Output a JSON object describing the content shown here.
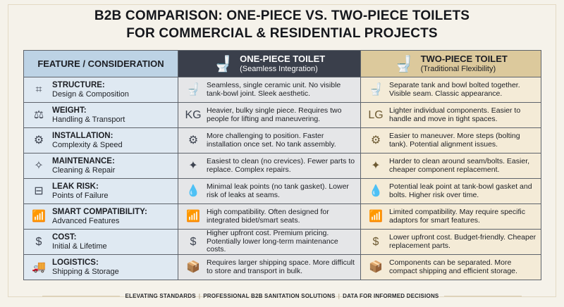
{
  "title": {
    "line1": "B2B COMPARISON: ONE-PIECE VS. TWO-PIECE TOILETS",
    "line2": "FOR COMMERCIAL & RESIDENTIAL PROJECTS"
  },
  "header": {
    "feature": "FEATURE / CONSIDERATION",
    "one_piece": {
      "title": "ONE-PIECE TOILET",
      "subtitle": "(Seamless Integration)",
      "icon": "toilet-icon"
    },
    "two_piece": {
      "title": "TWO-PIECE TOILET",
      "subtitle": "(Traditional Flexibility)",
      "icon": "toilet-icon"
    }
  },
  "rows": [
    {
      "label": "STRUCTURE:",
      "sub": "Design & Composition",
      "icon": "frame-icon",
      "glyph": "⌗",
      "one": "Seamless, single ceramic unit. No visible tank-bowl joint. Sleek aesthetic.",
      "one_icon": "toilet-icon",
      "one_glyph": "🚽",
      "two": "Separate tank and bowl bolted together. Visible seam. Classic appearance.",
      "two_icon": "toilet-icon",
      "two_glyph": "🚽"
    },
    {
      "label": "WEIGHT:",
      "sub": "Handling & Transport",
      "icon": "scale-icon",
      "glyph": "⚖",
      "one": "Heavier, bulky single piece. Requires two people for lifting and maneuvering.",
      "one_icon": "kg-weight-icon",
      "one_glyph": "KG",
      "two": "Lighter individual components. Easier to handle and move in tight spaces.",
      "two_icon": "lg-weight-icon",
      "two_glyph": "LG"
    },
    {
      "label": "INSTALLATION:",
      "sub": "Complexity & Speed",
      "icon": "gear-wrench-icon",
      "glyph": "⚙",
      "one": "More challenging to position. Faster installation once set. No tank assembly.",
      "one_icon": "gear-wrench-icon",
      "one_glyph": "⚙",
      "two": "Easier to maneuver. More steps (bolting tank). Potential alignment issues.",
      "two_icon": "steps-gear-icon",
      "two_glyph": "⚙"
    },
    {
      "label": "MAINTENANCE:",
      "sub": "Cleaning & Repair",
      "icon": "broom-icon",
      "glyph": "✧",
      "one": "Easiest to clean (no crevices). Fewer parts to replace. Complex repairs.",
      "one_icon": "cleaning-glove-icon",
      "one_glyph": "✦",
      "two": "Harder to clean around seam/bolts. Easier, cheaper component replacement.",
      "two_icon": "cleaning-glove-icon",
      "two_glyph": "✦"
    },
    {
      "label": "LEAK RISK:",
      "sub": "Points of Failure",
      "icon": "pipe-leak-icon",
      "glyph": "⊟",
      "one": "Minimal leak points (no tank gasket). Lower risk of leaks at seams.",
      "one_icon": "water-drop-icon",
      "one_glyph": "💧",
      "two": "Potential leak point at tank-bowl gasket and bolts. Higher risk over time.",
      "two_icon": "water-drop-icon",
      "two_glyph": "💧"
    },
    {
      "label": "SMART COMPATIBILITY:",
      "sub": "Advanced Features",
      "icon": "smart-toilet-icon",
      "glyph": "📶",
      "one": "High compatibility. Often designed for integrated bidet/smart seats.",
      "one_icon": "smart-toilet-icon",
      "one_glyph": "📶",
      "two": "Limited compatibility. May require specific adaptors for smart features.",
      "two_icon": "smart-toilet-icon",
      "two_glyph": "📶"
    },
    {
      "label": "COST:",
      "sub": "Initial & Lifetime",
      "icon": "coins-icon",
      "glyph": "$",
      "one": "Higher upfront cost. Premium pricing. Potentially lower long-term maintenance costs.",
      "one_icon": "hand-coin-icon",
      "one_glyph": "$",
      "two": "Lower upfront cost. Budget-friendly. Cheaper replacement parts.",
      "two_icon": "hand-coin-icon",
      "two_glyph": "$"
    },
    {
      "label": "LOGISTICS:",
      "sub": "Shipping & Storage",
      "icon": "truck-icon",
      "glyph": "🚚",
      "one": "Requires larger shipping space. More difficult to store and transport in bulk.",
      "one_icon": "box-icon",
      "one_glyph": "📦",
      "two": "Components can be separated. More compact shipping and efficient storage.",
      "two_icon": "box-icon",
      "two_glyph": "📦"
    }
  ],
  "footer": [
    "ELEVATING STANDARDS",
    "PROFESSIONAL B2B SANITATION SOLUTIONS",
    "DATA FOR INFORMED DECISIONS"
  ],
  "colors": {
    "feature_header": "#bdd3e5",
    "feature_cell": "#dfe9f2",
    "one_header": "#3a3f4b",
    "one_cell": "#e5e6e8",
    "two_header": "#dcc99c",
    "two_cell": "#f4ebd7"
  }
}
